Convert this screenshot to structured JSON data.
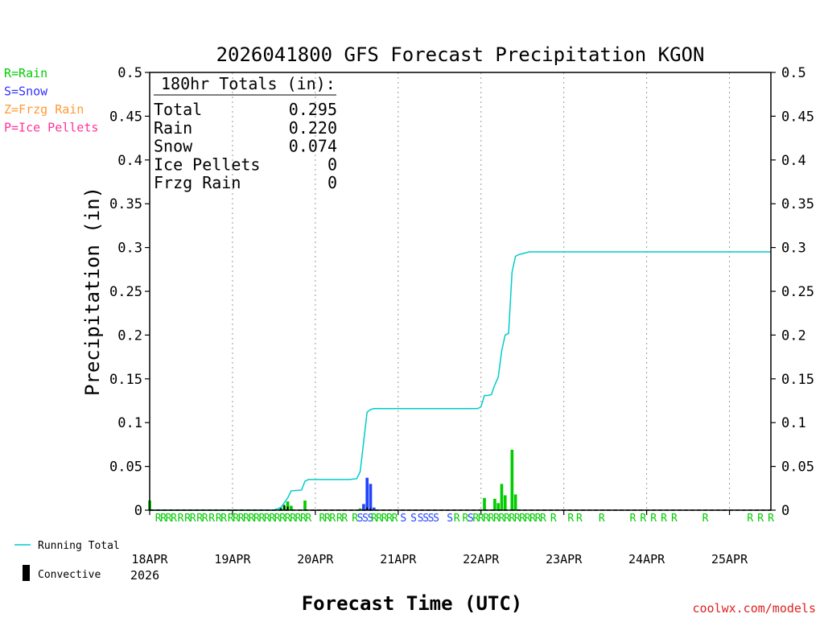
{
  "chart_data": {
    "type": "bar+line",
    "title": "2026041800 GFS Forecast Precipitation KGON",
    "xlabel": "Forecast Time (UTC)",
    "ylabel": "Precipitation (in)",
    "ylim": [
      0,
      0.5
    ],
    "xlim_hours": [
      0,
      180
    ],
    "y_ticks": [
      "0",
      "0.05",
      "0.1",
      "0.15",
      "0.2",
      "0.25",
      "0.3",
      "0.35",
      "0.4",
      "0.45",
      "0.5"
    ],
    "x_ticks": [
      {
        "hour": 0,
        "label": "18APR"
      },
      {
        "hour": 24,
        "label": "19APR"
      },
      {
        "hour": 48,
        "label": "20APR"
      },
      {
        "hour": 72,
        "label": "21APR"
      },
      {
        "hour": 96,
        "label": "22APR"
      },
      {
        "hour": 120,
        "label": "23APR"
      },
      {
        "hour": 144,
        "label": "24APR"
      },
      {
        "hour": 168,
        "label": "25APR"
      }
    ],
    "year_label": "2026",
    "legend_types": [
      {
        "label": "R=Rain",
        "color": "#00cc00"
      },
      {
        "label": "S=Snow",
        "color": "#3333ff"
      },
      {
        "label": "Z=Frzg Rain",
        "color": "#ff9933"
      },
      {
        "label": "P=Ice Pellets",
        "color": "#ff3399"
      }
    ],
    "legend_lines": [
      {
        "label": "Running Total",
        "color": "#00cccc"
      },
      {
        "label": "Convective",
        "color": "#000000"
      }
    ],
    "totals": {
      "header": "180hr Totals (in):",
      "rows": [
        {
          "label": "Total",
          "value": "0.295"
        },
        {
          "label": "Rain",
          "value": "0.220"
        },
        {
          "label": "Snow",
          "value": "0.074"
        },
        {
          "label": "Ice Pellets",
          "value": "0"
        },
        {
          "label": "Frzg Rain",
          "value": "0"
        }
      ]
    },
    "colors": {
      "rain": "#00cc00",
      "snow": "#2244ff",
      "running_total": "#00cccc",
      "convective": "#000000"
    },
    "bars": [
      {
        "hour": 0,
        "value": 0.011,
        "type": "rain"
      },
      {
        "hour": 38,
        "value": 0.002,
        "type": "rain"
      },
      {
        "hour": 39,
        "value": 0.005,
        "type": "rain"
      },
      {
        "hour": 40,
        "value": 0.01,
        "type": "rain"
      },
      {
        "hour": 41,
        "value": 0.005,
        "type": "rain"
      },
      {
        "hour": 45,
        "value": 0.011,
        "type": "rain"
      },
      {
        "hour": 61,
        "value": 0.002,
        "type": "rain"
      },
      {
        "hour": 62,
        "value": 0.007,
        "type": "snow"
      },
      {
        "hour": 63,
        "value": 0.037,
        "type": "snow"
      },
      {
        "hour": 64,
        "value": 0.03,
        "type": "snow"
      },
      {
        "hour": 65,
        "value": 0.003,
        "type": "snow"
      },
      {
        "hour": 96,
        "value": 0.001,
        "type": "rain"
      },
      {
        "hour": 97,
        "value": 0.014,
        "type": "rain"
      },
      {
        "hour": 99,
        "value": 0.001,
        "type": "rain"
      },
      {
        "hour": 100,
        "value": 0.013,
        "type": "rain"
      },
      {
        "hour": 101,
        "value": 0.008,
        "type": "rain"
      },
      {
        "hour": 102,
        "value": 0.03,
        "type": "rain"
      },
      {
        "hour": 103,
        "value": 0.017,
        "type": "rain"
      },
      {
        "hour": 105,
        "value": 0.069,
        "type": "rain"
      },
      {
        "hour": 106,
        "value": 0.018,
        "type": "rain"
      },
      {
        "hour": 107,
        "value": 0.001,
        "type": "rain"
      }
    ],
    "convective": [
      {
        "hour": 38,
        "value": 0.003
      },
      {
        "hour": 39,
        "value": 0.006
      },
      {
        "hour": 40,
        "value": 0.004
      },
      {
        "hour": 63,
        "value": 0.003
      },
      {
        "hour": 64,
        "value": 0.002
      }
    ],
    "running_total": {
      "hours": [
        0,
        36,
        38,
        40,
        41,
        44,
        45,
        46,
        50,
        58,
        60,
        61,
        62,
        63,
        64,
        65,
        66,
        72,
        90,
        95,
        96,
        97,
        98,
        99,
        100,
        101,
        102,
        103,
        104,
        105,
        106,
        107,
        108,
        110,
        120,
        150,
        180
      ],
      "values": [
        0.0,
        0.0,
        0.003,
        0.014,
        0.022,
        0.023,
        0.033,
        0.035,
        0.035,
        0.035,
        0.036,
        0.044,
        0.078,
        0.112,
        0.115,
        0.116,
        0.116,
        0.116,
        0.116,
        0.116,
        0.118,
        0.131,
        0.131,
        0.132,
        0.143,
        0.152,
        0.182,
        0.2,
        0.202,
        0.272,
        0.29,
        0.292,
        0.293,
        0.295,
        0.295,
        0.295,
        0.295
      ]
    },
    "type_letters": [
      {
        "hour": 2.5,
        "letter": "R"
      },
      {
        "hour": 4.0,
        "letter": "R"
      },
      {
        "hour": 5.5,
        "letter": "R"
      },
      {
        "hour": 7.0,
        "letter": "R"
      },
      {
        "hour": 9.0,
        "letter": "R"
      },
      {
        "hour": 11.0,
        "letter": "R"
      },
      {
        "hour": 12.5,
        "letter": "R"
      },
      {
        "hour": 14.5,
        "letter": "R"
      },
      {
        "hour": 16.0,
        "letter": "R"
      },
      {
        "hour": 18.0,
        "letter": "R"
      },
      {
        "hour": 20.0,
        "letter": "R"
      },
      {
        "hour": 21.5,
        "letter": "R"
      },
      {
        "hour": 23.5,
        "letter": "R"
      },
      {
        "hour": 25.0,
        "letter": "R"
      },
      {
        "hour": 26.5,
        "letter": "R"
      },
      {
        "hour": 28.0,
        "letter": "R"
      },
      {
        "hour": 29.5,
        "letter": "R"
      },
      {
        "hour": 31.0,
        "letter": "R"
      },
      {
        "hour": 32.5,
        "letter": "R"
      },
      {
        "hour": 34.0,
        "letter": "R"
      },
      {
        "hour": 35.5,
        "letter": "R"
      },
      {
        "hour": 37.0,
        "letter": "R"
      },
      {
        "hour": 38.5,
        "letter": "R"
      },
      {
        "hour": 40.0,
        "letter": "R"
      },
      {
        "hour": 41.5,
        "letter": "R"
      },
      {
        "hour": 43.0,
        "letter": "R"
      },
      {
        "hour": 44.5,
        "letter": "R"
      },
      {
        "hour": 46.0,
        "letter": "R"
      },
      {
        "hour": 50.0,
        "letter": "R"
      },
      {
        "hour": 51.5,
        "letter": "R"
      },
      {
        "hour": 53.0,
        "letter": "R"
      },
      {
        "hour": 55.0,
        "letter": "R"
      },
      {
        "hour": 56.5,
        "letter": "R"
      },
      {
        "hour": 59.5,
        "letter": "R"
      },
      {
        "hour": 61.0,
        "letter": "S"
      },
      {
        "hour": 62.5,
        "letter": "S"
      },
      {
        "hour": 64.0,
        "letter": "S"
      },
      {
        "hour": 65.0,
        "letter": "R"
      },
      {
        "hour": 66.5,
        "letter": "R"
      },
      {
        "hour": 68.0,
        "letter": "R"
      },
      {
        "hour": 69.5,
        "letter": "R"
      },
      {
        "hour": 71.0,
        "letter": "R"
      },
      {
        "hour": 73.5,
        "letter": "S"
      },
      {
        "hour": 76.5,
        "letter": "S"
      },
      {
        "hour": 78.5,
        "letter": "S"
      },
      {
        "hour": 80.0,
        "letter": "S"
      },
      {
        "hour": 81.5,
        "letter": "S"
      },
      {
        "hour": 83.0,
        "letter": "S"
      },
      {
        "hour": 87.0,
        "letter": "S"
      },
      {
        "hour": 89.0,
        "letter": "R"
      },
      {
        "hour": 91.5,
        "letter": "R"
      },
      {
        "hour": 93.0,
        "letter": "S"
      },
      {
        "hour": 94.5,
        "letter": "R"
      },
      {
        "hour": 96.0,
        "letter": "R"
      },
      {
        "hour": 97.5,
        "letter": "R"
      },
      {
        "hour": 99.0,
        "letter": "R"
      },
      {
        "hour": 100.5,
        "letter": "R"
      },
      {
        "hour": 102.0,
        "letter": "R"
      },
      {
        "hour": 103.5,
        "letter": "R"
      },
      {
        "hour": 105.0,
        "letter": "R"
      },
      {
        "hour": 106.5,
        "letter": "R"
      },
      {
        "hour": 108.0,
        "letter": "R"
      },
      {
        "hour": 109.5,
        "letter": "R"
      },
      {
        "hour": 111.0,
        "letter": "R"
      },
      {
        "hour": 112.5,
        "letter": "R"
      },
      {
        "hour": 114.0,
        "letter": "R"
      },
      {
        "hour": 117.0,
        "letter": "R"
      },
      {
        "hour": 122.0,
        "letter": "R"
      },
      {
        "hour": 124.5,
        "letter": "R"
      },
      {
        "hour": 131.0,
        "letter": "R"
      },
      {
        "hour": 140.0,
        "letter": "R"
      },
      {
        "hour": 143.0,
        "letter": "R"
      },
      {
        "hour": 146.0,
        "letter": "R"
      },
      {
        "hour": 149.0,
        "letter": "R"
      },
      {
        "hour": 152.0,
        "letter": "R"
      },
      {
        "hour": 161.0,
        "letter": "R"
      },
      {
        "hour": 174.0,
        "letter": "R"
      },
      {
        "hour": 177.0,
        "letter": "R"
      },
      {
        "hour": 180.0,
        "letter": "R"
      }
    ]
  },
  "footer": {
    "credit": "coolwx.com/models"
  }
}
